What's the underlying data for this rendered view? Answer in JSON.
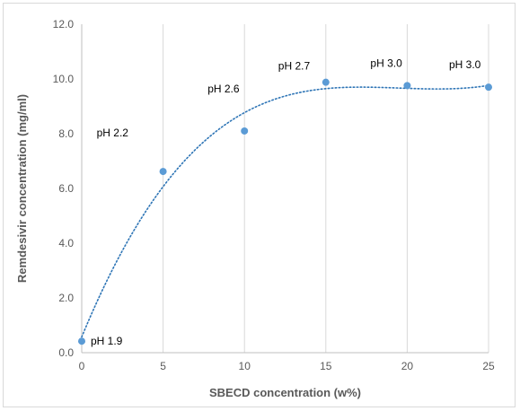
{
  "chart_data": {
    "type": "scatter",
    "title": "",
    "xlabel": "SBECD concentration (w%)",
    "ylabel": "Remdesivir concentration (mg/ml)",
    "xlim": [
      0,
      25
    ],
    "ylim": [
      0,
      12
    ],
    "x_ticks": [
      "0",
      "5",
      "10",
      "15",
      "20",
      "25"
    ],
    "y_ticks": [
      "0.0",
      "2.0",
      "4.0",
      "6.0",
      "8.0",
      "10.0",
      "12.0"
    ],
    "grid": "vertical",
    "trendline": "dotted polynomial",
    "colors": {
      "marker": "#5b9bd5",
      "trendline": "#2e75b6",
      "grid": "#d9d9d9"
    },
    "points": [
      {
        "x": 0,
        "y": 0.42,
        "label": "pH 1.9"
      },
      {
        "x": 5,
        "y": 6.62,
        "label": "pH 2.2"
      },
      {
        "x": 10,
        "y": 8.1,
        "label": "pH 2.6"
      },
      {
        "x": 15,
        "y": 9.88,
        "label": "pH 2.7"
      },
      {
        "x": 20,
        "y": 9.76,
        "label": "pH 3.0"
      },
      {
        "x": 25,
        "y": 9.7,
        "label": "pH 3.0"
      }
    ]
  }
}
